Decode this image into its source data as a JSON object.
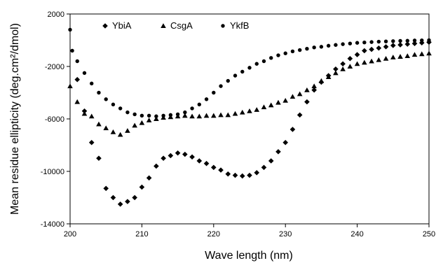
{
  "chart_data": {
    "type": "scatter",
    "title": "",
    "xlabel": "Wave length (nm)",
    "ylabel": "Mean residue ellipticity (deg.cm²/dmol)",
    "xlim": [
      200,
      250
    ],
    "ylim": [
      -14000,
      2000
    ],
    "x_ticks": [
      200,
      210,
      220,
      230,
      240,
      250
    ],
    "x_tick_labels": [
      "200",
      "210",
      "220",
      "230",
      "240",
      "250"
    ],
    "y_ticks": [
      2000,
      -2000,
      -6000,
      -10000,
      -14000
    ],
    "y_tick_labels": [
      "2000",
      "-2000",
      "-6000",
      "-10000",
      "-14000"
    ],
    "grid": false,
    "legend_position": "top-left",
    "series": [
      {
        "name": "YbiA",
        "marker": "diamond",
        "x": [
          201,
          202,
          203,
          204,
          205,
          206,
          207,
          208,
          209,
          210,
          211,
          212,
          213,
          214,
          215,
          216,
          217,
          218,
          219,
          220,
          221,
          222,
          223,
          224,
          225,
          226,
          227,
          228,
          229,
          230,
          231,
          232,
          233,
          234,
          235,
          236,
          237,
          238,
          239,
          240,
          241,
          242,
          243,
          244,
          245,
          246,
          247,
          248,
          249,
          250
        ],
        "y": [
          -3000,
          -5400,
          -7800,
          -9000,
          -11300,
          -12000,
          -12500,
          -12300,
          -12000,
          -11200,
          -10500,
          -9600,
          -9000,
          -8800,
          -8600,
          -8700,
          -8900,
          -9200,
          -9400,
          -9700,
          -9900,
          -10200,
          -10300,
          -10350,
          -10300,
          -10100,
          -9700,
          -9200,
          -8500,
          -7800,
          -6800,
          -5700,
          -4700,
          -3800,
          -3200,
          -2700,
          -2200,
          -1800,
          -1400,
          -1100,
          -800,
          -700,
          -600,
          -500,
          -400,
          -350,
          -300,
          -250,
          -200,
          -150
        ]
      },
      {
        "name": "CsgA",
        "marker": "triangle",
        "x": [
          200,
          201,
          202,
          203,
          204,
          205,
          206,
          207,
          208,
          209,
          210,
          211,
          212,
          213,
          214,
          215,
          216,
          217,
          218,
          219,
          220,
          221,
          222,
          223,
          224,
          225,
          226,
          227,
          228,
          229,
          230,
          231,
          232,
          233,
          234,
          235,
          236,
          237,
          238,
          239,
          240,
          241,
          242,
          243,
          244,
          245,
          246,
          247,
          248,
          249,
          250
        ],
        "y": [
          -3500,
          -4700,
          -5600,
          -5800,
          -6400,
          -6700,
          -7000,
          -7200,
          -6900,
          -6500,
          -6300,
          -6100,
          -6000,
          -5900,
          -5850,
          -5800,
          -5750,
          -5800,
          -5800,
          -5750,
          -5750,
          -5700,
          -5700,
          -5600,
          -5500,
          -5400,
          -5300,
          -5100,
          -4950,
          -4750,
          -4600,
          -4300,
          -4100,
          -3800,
          -3500,
          -3100,
          -2800,
          -2500,
          -2200,
          -2000,
          -1800,
          -1700,
          -1600,
          -1500,
          -1400,
          -1300,
          -1250,
          -1200,
          -1100,
          -1050,
          -1000
        ]
      },
      {
        "name": "YkfB",
        "marker": "circle",
        "x": [
          200,
          200.3,
          201,
          202,
          203,
          204,
          205,
          206,
          207,
          208,
          209,
          210,
          211,
          212,
          213,
          214,
          215,
          216,
          217,
          218,
          219,
          220,
          221,
          222,
          223,
          224,
          225,
          226,
          227,
          228,
          229,
          230,
          231,
          232,
          233,
          234,
          235,
          236,
          237,
          238,
          239,
          240,
          241,
          242,
          243,
          244,
          245,
          246,
          247,
          248,
          249,
          250
        ],
        "y": [
          800,
          -800,
          -1600,
          -2500,
          -3300,
          -4000,
          -4500,
          -4900,
          -5200,
          -5500,
          -5650,
          -5750,
          -5750,
          -5800,
          -5750,
          -5700,
          -5650,
          -5500,
          -5200,
          -4900,
          -4500,
          -4000,
          -3500,
          -3100,
          -2700,
          -2400,
          -2100,
          -1800,
          -1600,
          -1350,
          -1150,
          -1000,
          -850,
          -750,
          -650,
          -550,
          -500,
          -420,
          -360,
          -300,
          -250,
          -200,
          -170,
          -140,
          -110,
          -90,
          -70,
          -50,
          -40,
          -20,
          -10,
          0
        ]
      }
    ]
  }
}
